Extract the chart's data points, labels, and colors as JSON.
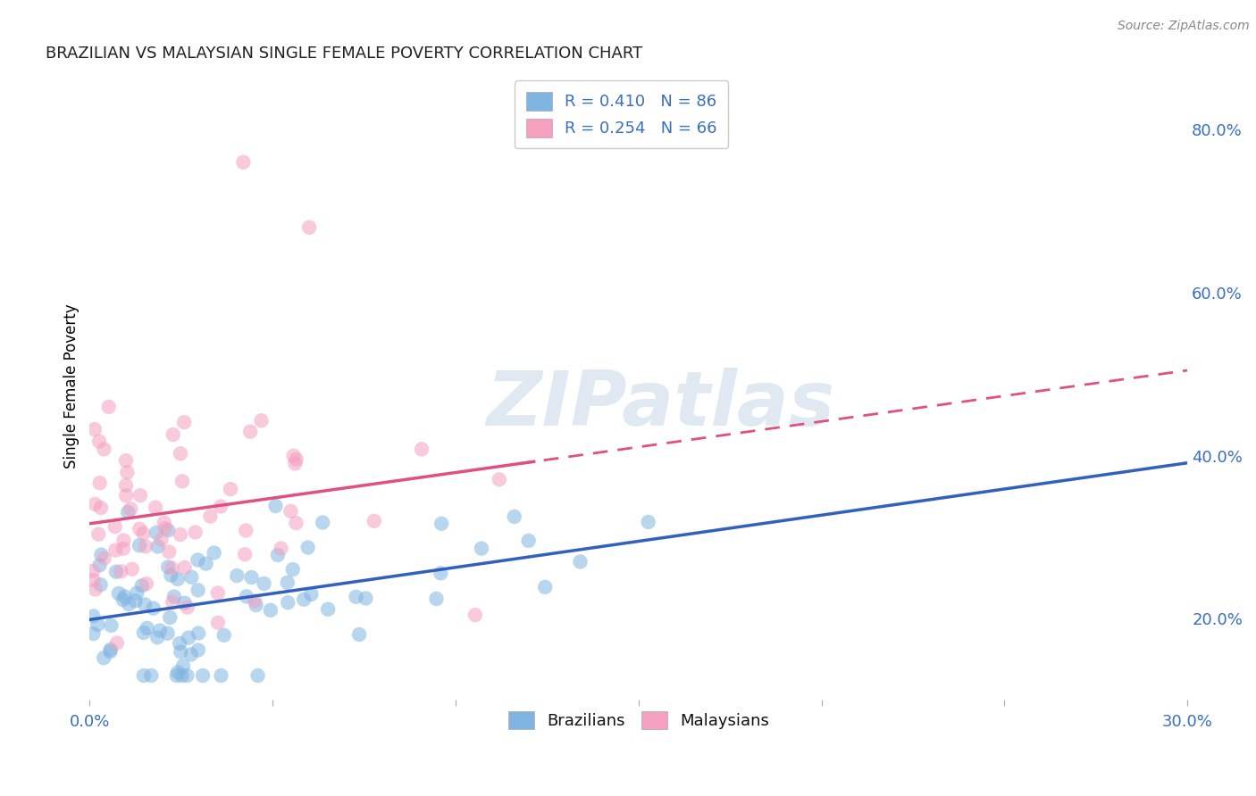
{
  "title": "BRAZILIAN VS MALAYSIAN SINGLE FEMALE POVERTY CORRELATION CHART",
  "source": "Source: ZipAtlas.com",
  "ylabel": "Single Female Poverty",
  "xlim": [
    0.0,
    0.3
  ],
  "ylim": [
    0.1,
    0.87
  ],
  "xticks": [
    0.0,
    0.05,
    0.1,
    0.15,
    0.2,
    0.25,
    0.3
  ],
  "xticklabels": [
    "0.0%",
    "",
    "",
    "",
    "",
    "",
    "30.0%"
  ],
  "yticks_right": [
    0.2,
    0.4,
    0.6,
    0.8
  ],
  "ytick_right_labels": [
    "20.0%",
    "40.0%",
    "60.0%",
    "80.0%"
  ],
  "blue_color": "#7fb5e0",
  "pink_color": "#f5a0bf",
  "blue_line_color": "#3060c0",
  "pink_line_color": "#e05080",
  "legend_text_blue": "R = 0.410   N = 86",
  "legend_text_pink": "R = 0.254   N = 66",
  "watermark": "ZIPatlas",
  "background_color": "#ffffff",
  "grid_color": "#d0d0d0"
}
